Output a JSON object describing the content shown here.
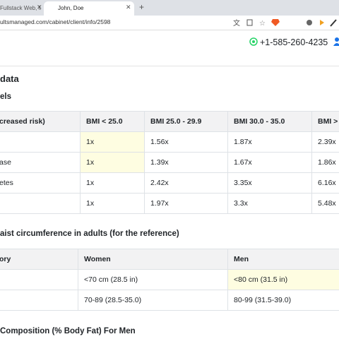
{
  "browser": {
    "tabs": [
      "Fullstack Web, Mo",
      "John, Doe"
    ],
    "url": "ultsmanaged.com/cabinet/client/info/2598"
  },
  "header": {
    "phone": "+1-585-260-4235"
  },
  "page_title": "data",
  "section1": {
    "title": "els",
    "table": {
      "header": [
        "creased risk)",
        "BMI < 25.0",
        "BMI 25.0 - 29.9",
        "BMI 30.0 - 35.0",
        "BMI > "
      ],
      "rows": [
        [
          "",
          "1x",
          "1.56x",
          "1.87x",
          "2.39x"
        ],
        [
          "ase",
          "1x",
          "1.39x",
          "1.67x",
          "1.86x"
        ],
        [
          "etes",
          "1x",
          "2.42x",
          "3.35x",
          "6.16x"
        ],
        [
          "",
          "1x",
          "1.97x",
          "3.3x",
          "5.48x"
        ]
      ]
    }
  },
  "section2": {
    "title": "aist circumference in adults (for the reference)",
    "table": {
      "header": [
        "ory",
        "Women",
        "Men"
      ],
      "rows": [
        [
          "",
          "<70 cm (28.5 in)",
          "<80 cm (31.5 in)"
        ],
        [
          "",
          "70-89 (28.5-35.0)",
          "80-99 (31.5-39.0)"
        ]
      ]
    }
  },
  "section3": {
    "title": "Composition (% Body Fat) For Men"
  }
}
